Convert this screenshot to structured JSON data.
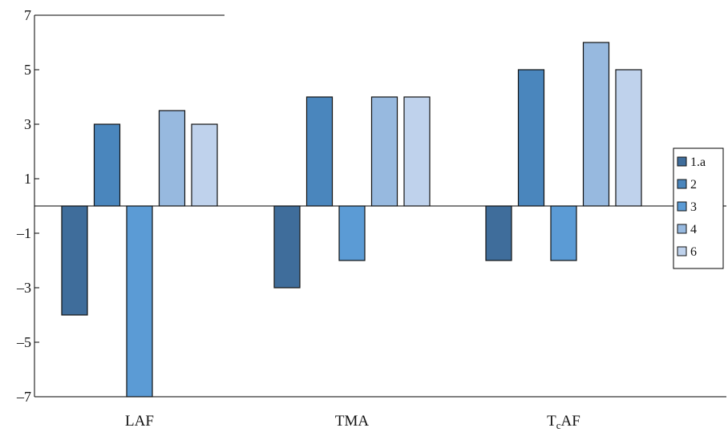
{
  "chart_data": {
    "type": "bar",
    "categories": [
      "LAF",
      "TMA",
      "TcAF"
    ],
    "category_labels": [
      {
        "main": "LAF",
        "sub": "",
        "rest": ""
      },
      {
        "main": "TMA",
        "sub": "",
        "rest": ""
      },
      {
        "main": "T",
        "sub": "c",
        "rest": "AF"
      }
    ],
    "series": [
      {
        "name": "1.a",
        "color": "#3f6d9b",
        "values": [
          -4,
          -3,
          -2
        ]
      },
      {
        "name": "2",
        "color": "#4a86bd",
        "values": [
          3,
          4,
          5
        ]
      },
      {
        "name": "3",
        "color": "#5b9bd5",
        "values": [
          -7,
          -2,
          -2
        ]
      },
      {
        "name": "4",
        "color": "#97b9df",
        "values": [
          3.5,
          4,
          6
        ]
      },
      {
        "name": "6",
        "color": "#bfd2ec",
        "values": [
          3,
          4,
          5
        ]
      }
    ],
    "yticks": [
      7,
      5,
      3,
      1,
      -1,
      -3,
      -5,
      -7
    ],
    "ytick_labels": [
      "7",
      "5",
      "3",
      "1",
      "–1",
      "–3",
      "–5",
      "–7"
    ],
    "ylim": [
      -7,
      7
    ],
    "grid": false,
    "legend_position": "right"
  }
}
